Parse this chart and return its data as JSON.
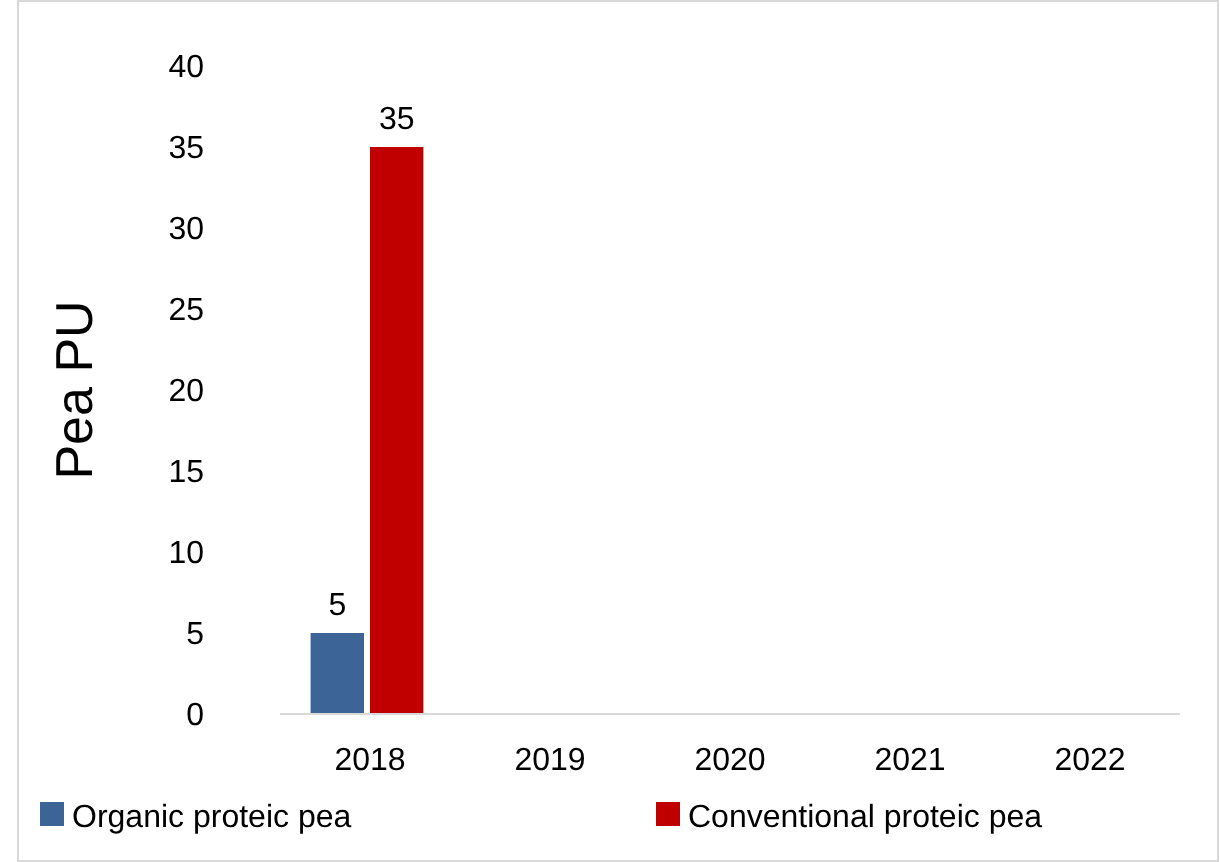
{
  "chart_data": {
    "type": "bar",
    "ylabel": "Pea PU",
    "categories": [
      "2018",
      "2019",
      "2020",
      "2021",
      "2022"
    ],
    "series": [
      {
        "name": "Organic proteic pea",
        "color": "#3d6496",
        "values": [
          5,
          null,
          null,
          null,
          null
        ]
      },
      {
        "name": "Conventional proteic pea",
        "color": "#c00000",
        "values": [
          35,
          null,
          null,
          null,
          null
        ]
      }
    ],
    "ylim": [
      0,
      40
    ],
    "yticks": [
      0,
      5,
      10,
      15,
      20,
      25,
      30,
      35,
      40
    ],
    "grid": false,
    "legend": "bottom",
    "data_labels": true
  }
}
